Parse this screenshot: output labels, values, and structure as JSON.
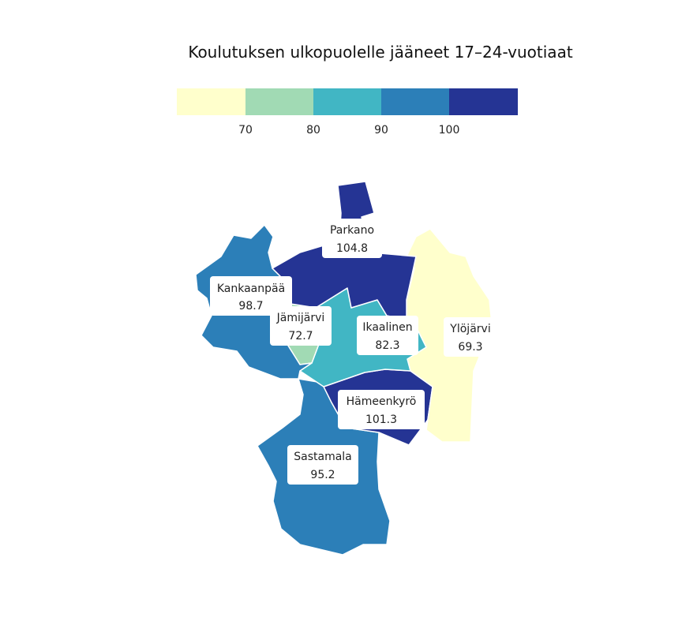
{
  "title": "Koulutuksen ulkopuolelle jääneet 17–24-vuotiaat",
  "legend": {
    "colors": [
      "#ffffcc",
      "#a1dab4",
      "#41b6c4",
      "#2c7fb8",
      "#253494"
    ],
    "ticks": [
      "70",
      "80",
      "90",
      "100"
    ]
  },
  "regions": [
    {
      "name": "Parkano",
      "value": "104.8",
      "color": "#253494"
    },
    {
      "name": "Kankaanpää",
      "value": "98.7",
      "color": "#2c7fb8"
    },
    {
      "name": "Jämijärvi",
      "value": "72.7",
      "color": "#a1dab4"
    },
    {
      "name": "Ikaalinen",
      "value": "82.3",
      "color": "#41b6c4"
    },
    {
      "name": "Ylöjärvi",
      "value": "69.3",
      "color": "#ffffcc"
    },
    {
      "name": "Hämeenkyrö",
      "value": "101.3",
      "color": "#253494"
    },
    {
      "name": "Sastamala",
      "value": "95.2",
      "color": "#2c7fb8"
    }
  ]
}
